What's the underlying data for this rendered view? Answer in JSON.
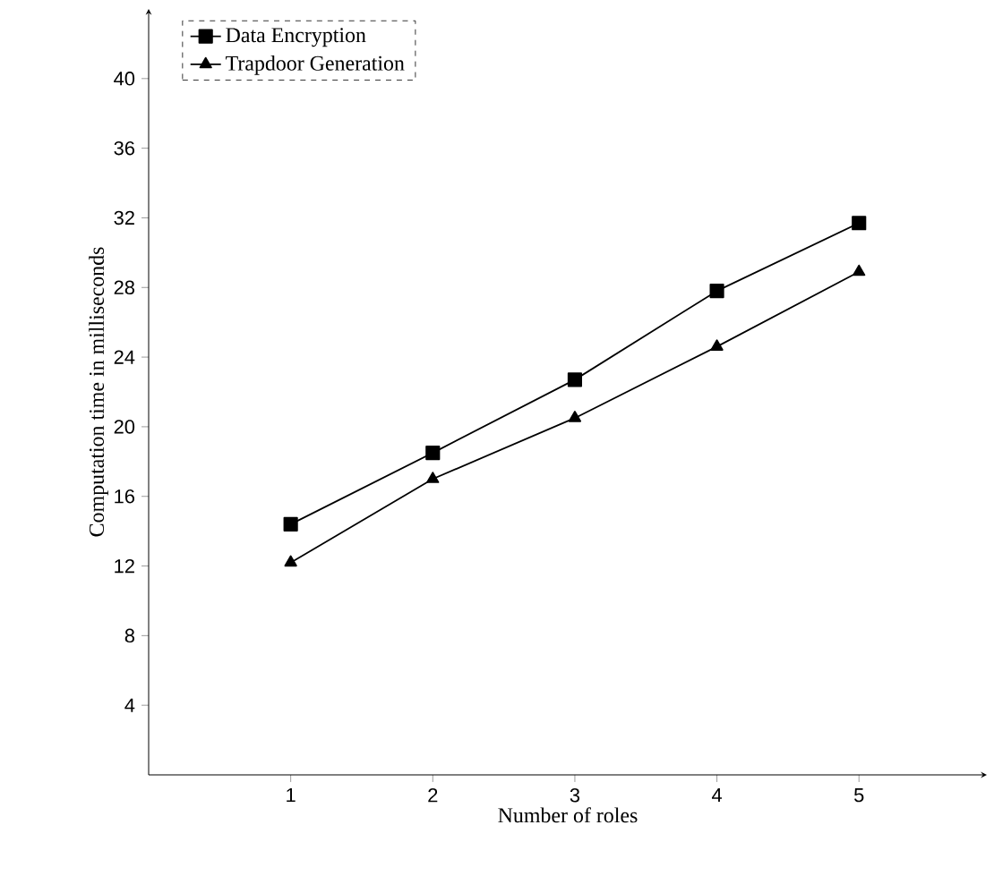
{
  "chart_data": {
    "type": "line",
    "xlabel": "Number of roles",
    "ylabel": "Computation time in milliseconds",
    "x": [
      1,
      2,
      3,
      4,
      5
    ],
    "xlim": [
      0,
      5.9
    ],
    "xticks": [
      1,
      2,
      3,
      4,
      5
    ],
    "ylim": [
      0,
      44
    ],
    "yticks": [
      4,
      8,
      12,
      16,
      20,
      24,
      28,
      32,
      36,
      40
    ],
    "legend": "top left",
    "series": [
      {
        "name": "Data Encryption",
        "color": "#000000",
        "marker": "square",
        "values": [
          14.4,
          18.5,
          22.7,
          27.8,
          31.7
        ]
      },
      {
        "name": "Trapdoor Generation",
        "color": "#000000",
        "marker": "triangle",
        "values": [
          12.2,
          17.0,
          20.5,
          24.6,
          28.9
        ]
      }
    ]
  }
}
